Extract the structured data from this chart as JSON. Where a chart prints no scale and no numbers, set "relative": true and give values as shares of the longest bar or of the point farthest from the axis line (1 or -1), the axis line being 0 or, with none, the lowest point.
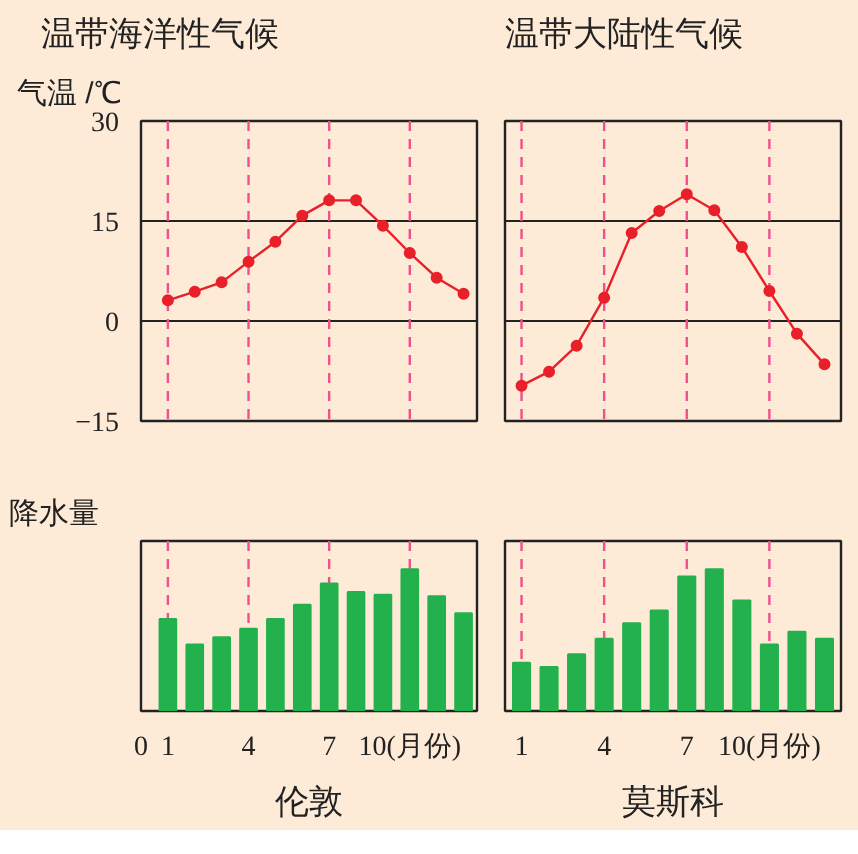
{
  "chart_data": [
    {
      "type": "line",
      "title": "温带海洋性气候",
      "ylabel": "气温 /℃",
      "x": [
        1,
        2,
        3,
        4,
        5,
        6,
        7,
        8,
        9,
        10,
        11,
        12
      ],
      "values": [
        3.1,
        4.4,
        5.8,
        8.9,
        11.9,
        15.8,
        18.1,
        18.1,
        14.3,
        10.2,
        6.5,
        4.1
      ],
      "color": "#e8202a",
      "marker": "circle",
      "xlim": [
        0,
        12.5
      ],
      "ylim": [
        -15,
        30
      ],
      "yticks": [
        30,
        15,
        0,
        {
          "value": -15,
          "label": "−15"
        }
      ],
      "grid": "y",
      "tick_labels": "y",
      "ref_lines": [
        {
          "axis": "x",
          "value": 1,
          "color": "#f0508c",
          "line_style": "dashed"
        },
        {
          "axis": "x",
          "value": 4,
          "color": "#f0508c",
          "line_style": "dashed"
        },
        {
          "axis": "x",
          "value": 7,
          "color": "#f0508c",
          "line_style": "dashed"
        },
        {
          "axis": "x",
          "value": 10,
          "color": "#f0508c",
          "line_style": "dashed"
        }
      ]
    },
    {
      "type": "line",
      "title": "温带大陆性气候",
      "x": [
        1,
        2,
        3,
        4,
        5,
        6,
        7,
        8,
        9,
        10,
        11,
        12
      ],
      "values": [
        -9.7,
        -7.6,
        -3.7,
        3.5,
        13.2,
        16.5,
        19.0,
        16.6,
        11.1,
        4.5,
        -1.9,
        -6.5
      ],
      "color": "#e8202a",
      "marker": "circle",
      "xlim": [
        0.4,
        12.6
      ],
      "ylim": [
        -15,
        30
      ],
      "yticks": [
        30,
        15,
        0,
        -15
      ],
      "grid": "y",
      "tick_labels": false,
      "ref_lines": [
        {
          "axis": "x",
          "value": 1,
          "color": "#f0508c",
          "line_style": "dashed"
        },
        {
          "axis": "x",
          "value": 4,
          "color": "#f0508c",
          "line_style": "dashed"
        },
        {
          "axis": "x",
          "value": 7,
          "color": "#f0508c",
          "line_style": "dashed"
        },
        {
          "axis": "x",
          "value": 10,
          "color": "#f0508c",
          "line_style": "dashed"
        }
      ]
    },
    {
      "type": "bar",
      "ylabel": "降水量",
      "xlabel": "伦敦",
      "relative": true,
      "x": [
        1,
        2,
        3,
        4,
        5,
        6,
        7,
        8,
        9,
        10,
        11,
        12
      ],
      "values": [
        0.65,
        0.47,
        0.52,
        0.58,
        0.65,
        0.75,
        0.9,
        0.84,
        0.82,
        1,
        0.81,
        0.69
      ],
      "color": "#22b14c",
      "xlim": [
        0,
        12.5
      ],
      "xticks": [
        0,
        1,
        4,
        7,
        {
          "value": 10,
          "label": "10(月份)"
        }
      ],
      "tick_labels": "x",
      "ref_lines": [
        {
          "axis": "x",
          "value": 1,
          "color": "#f0508c",
          "line_style": "dashed"
        },
        {
          "axis": "x",
          "value": 4,
          "color": "#f0508c",
          "line_style": "dashed"
        },
        {
          "axis": "x",
          "value": 7,
          "color": "#f0508c",
          "line_style": "dashed"
        },
        {
          "axis": "x",
          "value": 10,
          "color": "#f0508c",
          "line_style": "dashed"
        }
      ]
    },
    {
      "type": "bar",
      "xlabel": "莫斯科",
      "relative": true,
      "x": [
        1,
        2,
        3,
        4,
        5,
        6,
        7,
        8,
        9,
        10,
        11,
        12
      ],
      "values": [
        0.34,
        0.31,
        0.4,
        0.51,
        0.62,
        0.71,
        0.95,
        1,
        0.78,
        0.47,
        0.56,
        0.51
      ],
      "color": "#22b14c",
      "xlim": [
        0.4,
        12.6
      ],
      "xticks": [
        1,
        4,
        7,
        {
          "value": 10,
          "label": "10(月份)"
        }
      ],
      "tick_labels": "x",
      "ref_lines": [
        {
          "axis": "x",
          "value": 1,
          "color": "#f0508c",
          "line_style": "dashed"
        },
        {
          "axis": "x",
          "value": 4,
          "color": "#f0508c",
          "line_style": "dashed"
        },
        {
          "axis": "x",
          "value": 7,
          "color": "#f0508c",
          "line_style": "dashed"
        },
        {
          "axis": "x",
          "value": 10,
          "color": "#f0508c",
          "line_style": "dashed"
        }
      ]
    }
  ]
}
